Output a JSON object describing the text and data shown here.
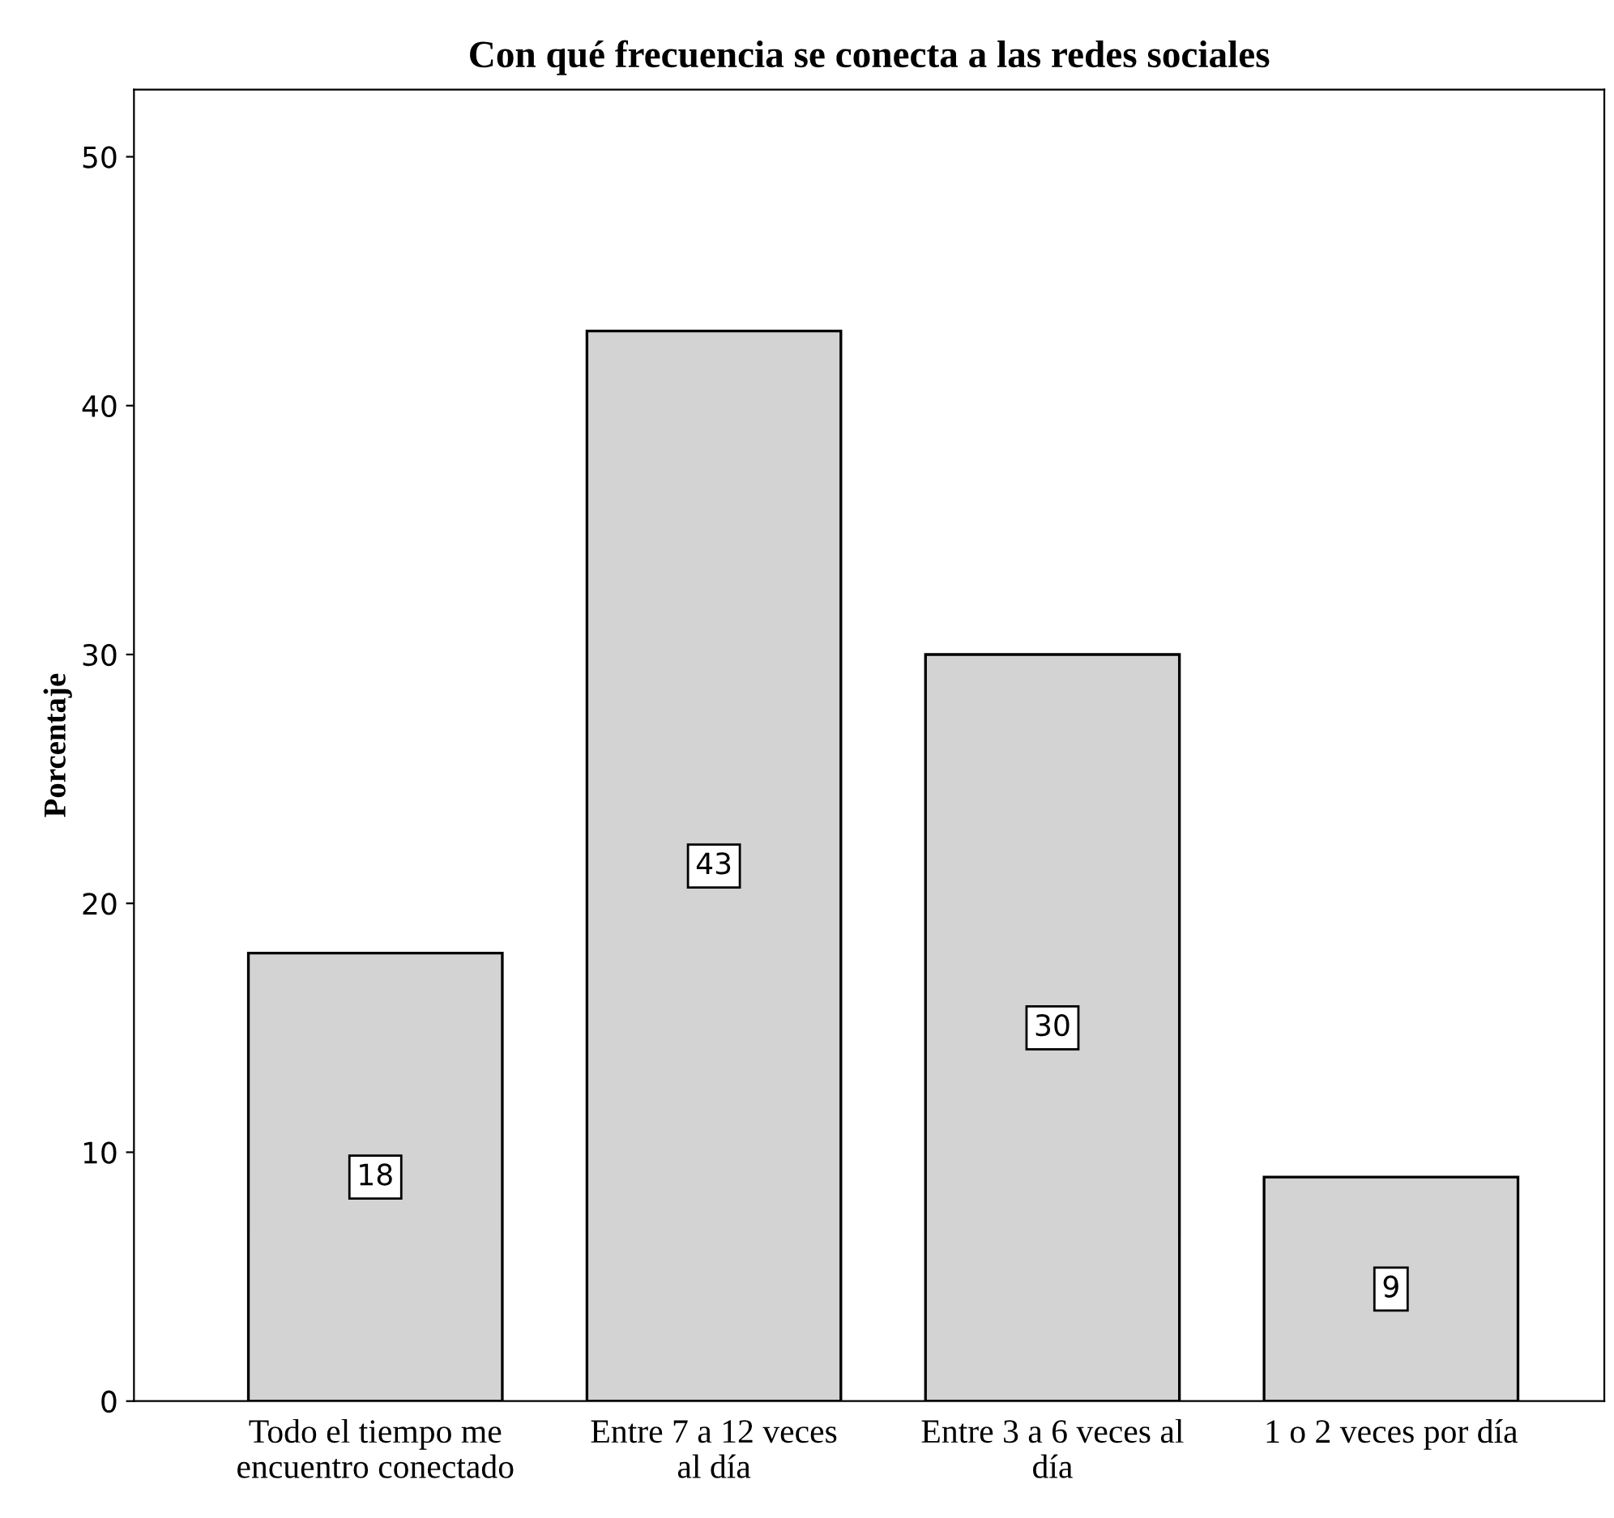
{
  "chart_data": {
    "type": "bar",
    "title": "Con qué frecuencia se conecta a las redes sociales",
    "ylabel": "Porcentaje",
    "categories": [
      "Todo el tiempo me encuentro conectado",
      "Entre 7 a 12 veces al día",
      "Entre 3 a 6 veces al día",
      "1 o 2 veces por día"
    ],
    "values": [
      18,
      43,
      30,
      9
    ],
    "color": "#d3d3d3",
    "data_labels": true,
    "ylim": [
      0,
      52.7
    ],
    "yticks": [
      0,
      10,
      20,
      30,
      40,
      50
    ],
    "grid": false,
    "legend": false
  }
}
